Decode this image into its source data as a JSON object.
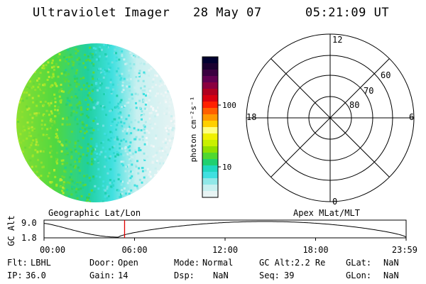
{
  "header": {
    "instrument": "Ultraviolet Imager",
    "date": "28 May 07",
    "time": "05:21:09 UT"
  },
  "colorbar": {
    "unit_label": "photon cm⁻²s⁻¹",
    "ticks": [
      "100",
      "10"
    ],
    "colors": [
      "#000030",
      "#1a0030",
      "#3a0040",
      "#600050",
      "#8a0040",
      "#b00020",
      "#d80010",
      "#ff2000",
      "#ff6000",
      "#ff9a00",
      "#ffd000",
      "#ffff80",
      "#f0f000",
      "#c8f000",
      "#90e000",
      "#50d830",
      "#20d070",
      "#20d8c0",
      "#40e0e0",
      "#90e8e8",
      "#c8f0f0",
      "#e8f4f4"
    ]
  },
  "polar": {
    "mlt_labels": {
      "top": "12",
      "left": "18",
      "right": "6",
      "bottom": "0"
    },
    "lat_labels": [
      "60",
      "70",
      "80"
    ]
  },
  "orbit": {
    "left_title": "Geographic Lat/Lon",
    "right_title": "Apex MLat/MLT",
    "y_axis_label": "GC Alt",
    "y_ticks": [
      "9.0",
      "1.8"
    ],
    "x_ticks": [
      "00:00",
      "06:00",
      "12:00",
      "18:00",
      "23:59"
    ],
    "marker_fraction": 0.2225,
    "colors": {
      "marker": "#e00000"
    }
  },
  "info": {
    "flt_label": "Flt:",
    "flt_value": "LBHL",
    "ip_label": "IP:",
    "ip_value": "36.0",
    "door_label": "Door:",
    "door_value": "Open",
    "gain_label": "Gain:",
    "gain_value": "14",
    "mode_label": "Mode:",
    "mode_value": "Normal",
    "dsp_label": "Dsp:",
    "dsp_value": "NaN",
    "gcalt_label": "GC Alt:",
    "gcalt_value": "2.2 Re",
    "seq_label": "Seq:",
    "seq_value": "39",
    "glat_label": "GLat:",
    "glat_value": "NaN",
    "glon_label": "GLon:",
    "glon_value": "NaN"
  }
}
